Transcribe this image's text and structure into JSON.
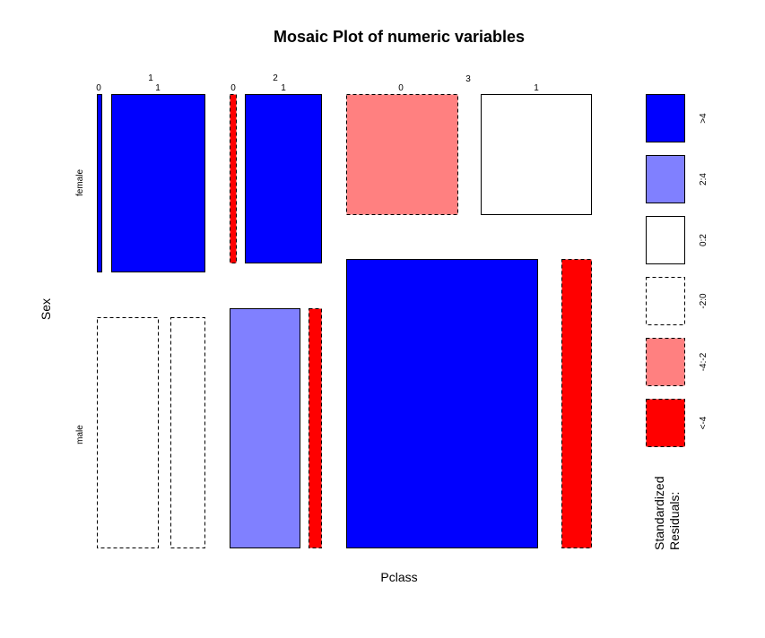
{
  "chart_data": {
    "type": "mosaic",
    "title": "Mosaic Plot of numeric variables",
    "xlabel": "Pclass",
    "ylabel": "Sex",
    "pclass_levels": [
      "1",
      "2",
      "3"
    ],
    "sex_levels": [
      "female",
      "male"
    ],
    "survived_levels": [
      "0",
      "1"
    ],
    "cells": [
      {
        "pclass": "1",
        "sex": "female",
        "survived": "0",
        "residual_class": ">4"
      },
      {
        "pclass": "1",
        "sex": "female",
        "survived": "1",
        "residual_class": ">4"
      },
      {
        "pclass": "1",
        "sex": "male",
        "survived": "0",
        "residual_class": "-2:0"
      },
      {
        "pclass": "1",
        "sex": "male",
        "survived": "1",
        "residual_class": "-2:0"
      },
      {
        "pclass": "2",
        "sex": "female",
        "survived": "0",
        "residual_class": "<-4"
      },
      {
        "pclass": "2",
        "sex": "female",
        "survived": "1",
        "residual_class": ">4"
      },
      {
        "pclass": "2",
        "sex": "male",
        "survived": "0",
        "residual_class": "2:4"
      },
      {
        "pclass": "2",
        "sex": "male",
        "survived": "1",
        "residual_class": "<-4"
      },
      {
        "pclass": "3",
        "sex": "female",
        "survived": "0",
        "residual_class": "-4:-2"
      },
      {
        "pclass": "3",
        "sex": "female",
        "survived": "1",
        "residual_class": "0:2"
      },
      {
        "pclass": "3",
        "sex": "male",
        "survived": "0",
        "residual_class": ">4"
      },
      {
        "pclass": "3",
        "sex": "male",
        "survived": "1",
        "residual_class": "<-4"
      }
    ],
    "legend": {
      "title_lines": [
        "Standardized",
        "Residuals:"
      ],
      "entries": [
        {
          "label": ">4",
          "color": "#0000ff",
          "dashed": false
        },
        {
          "label": "2:4",
          "color": "#8080ff",
          "dashed": false
        },
        {
          "label": "0:2",
          "color": "#ffffff",
          "dashed": false
        },
        {
          "label": "-2:0",
          "color": "#ffffff",
          "dashed": true
        },
        {
          "label": "-4:-2",
          "color": "#ff8080",
          "dashed": true
        },
        {
          "label": "<-4",
          "color": "#ff0000",
          "dashed": true
        }
      ]
    }
  }
}
